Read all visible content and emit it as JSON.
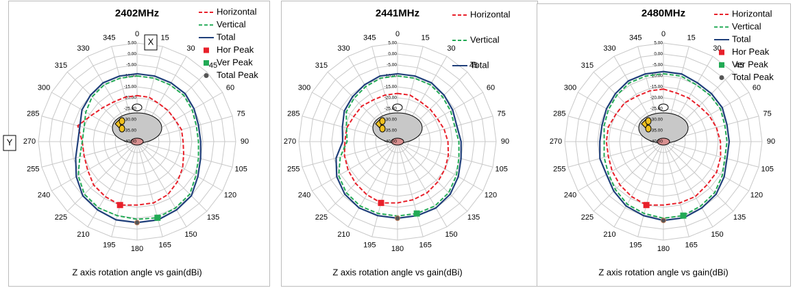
{
  "chart_data": [
    {
      "type": "radar",
      "title": "2402MHz",
      "x_label": "Z axis rotation angle  vs  gain(dBi)",
      "categories": [
        "0",
        "15",
        "30",
        "45",
        "60",
        "75",
        "90",
        "105",
        "120",
        "135",
        "150",
        "165",
        "180",
        "195",
        "210",
        "225",
        "240",
        "255",
        "270",
        "285",
        "300",
        "315",
        "330",
        "345"
      ],
      "rlim": [
        -40,
        5
      ],
      "rticks": [
        {
          "value": 5,
          "label": "5.00"
        },
        {
          "value": 0,
          "label": "0.00"
        },
        {
          "value": -5,
          "label": "-5.00"
        },
        {
          "value": -10,
          "label": "-10.00"
        },
        {
          "value": -15,
          "label": "-15.00"
        },
        {
          "value": -20,
          "label": "-20.00"
        },
        {
          "value": -25,
          "label": "-25.00"
        },
        {
          "value": -30,
          "label": "-30.00"
        },
        {
          "value": -35,
          "label": "-35.00"
        },
        {
          "value": -40,
          "label": "-40.00"
        }
      ],
      "series": [
        {
          "name": "Horizontal",
          "color": "#e8202a",
          "line_style": "dashed",
          "values": [
            -19,
            -19,
            -20,
            -20,
            -20,
            -19,
            -19,
            -18,
            -16,
            -14,
            -12,
            -11,
            -11,
            -10,
            -11,
            -12,
            -14,
            -15,
            -15,
            -12,
            -16,
            -18,
            -19,
            -19
          ]
        },
        {
          "name": "Vertical",
          "color": "#22aa55",
          "line_style": "dashed",
          "values": [
            -10,
            -10,
            -10,
            -10,
            -11,
            -12,
            -12,
            -11,
            -9,
            -6,
            -5,
            -4,
            -4.5,
            -5,
            -5,
            -6,
            -9,
            -13,
            -15,
            -15,
            -13,
            -11,
            -10,
            -10
          ]
        },
        {
          "name": "Total",
          "color": "#1f3f7a",
          "line_style": "solid",
          "values": [
            -9,
            -9,
            -9,
            -9,
            -10,
            -11,
            -11,
            -10,
            -8,
            -5,
            -4,
            -3,
            -3,
            -3,
            -4,
            -5,
            -8,
            -11,
            -13,
            -13,
            -11,
            -10,
            -9,
            -9
          ]
        }
      ],
      "peaks": [
        {
          "name": "Hor Peak",
          "color": "#e8202a",
          "marker": "square",
          "angle": 195,
          "value": -10
        },
        {
          "name": "Ver Peak",
          "color": "#22aa55",
          "marker": "square",
          "angle": 165,
          "value": -4
        },
        {
          "name": "Total Peak",
          "color": "#555555",
          "marker": "circle",
          "angle": 180,
          "value": -3
        }
      ],
      "annotations": [
        "X",
        "Y"
      ]
    },
    {
      "type": "radar",
      "title": "2441MHz",
      "x_label": "Z axis rotation angle  vs  gain(dBi)",
      "categories": [
        "0",
        "15",
        "30",
        "45",
        "60",
        "75",
        "90",
        "105",
        "120",
        "135",
        "150",
        "165",
        "180",
        "195",
        "210",
        "225",
        "240",
        "255",
        "270",
        "285",
        "300",
        "315",
        "330",
        "345"
      ],
      "rlim": [
        -40,
        5
      ],
      "rticks": [
        {
          "value": 5,
          "label": "5.00"
        },
        {
          "value": 0,
          "label": "0.00"
        },
        {
          "value": -5,
          "label": "-5.00"
        },
        {
          "value": -10,
          "label": "-10.00"
        },
        {
          "value": -15,
          "label": "-15.00"
        },
        {
          "value": -20,
          "label": "-20.00"
        },
        {
          "value": -25,
          "label": "-25.00"
        },
        {
          "value": -30,
          "label": "-30.00"
        },
        {
          "value": -35,
          "label": "-35.00"
        },
        {
          "value": -40,
          "label": "-40.00"
        }
      ],
      "series": [
        {
          "name": "Horizontal",
          "color": "#e8202a",
          "line_style": "dashed",
          "values": [
            -18,
            -18,
            -19,
            -19,
            -19,
            -18,
            -17,
            -16,
            -15,
            -14,
            -13,
            -12.5,
            -12,
            -11,
            -12,
            -13,
            -14,
            -15,
            -16,
            -16,
            -17,
            -17,
            -18,
            -18
          ]
        },
        {
          "name": "Vertical",
          "color": "#22aa55",
          "line_style": "dashed",
          "values": [
            -10,
            -10,
            -10,
            -11,
            -12,
            -13,
            -12,
            -11,
            -9,
            -7,
            -6,
            -6,
            -6,
            -6,
            -6,
            -7,
            -9,
            -13,
            -17,
            -16,
            -13,
            -12,
            -11,
            -10
          ]
        },
        {
          "name": "Total",
          "color": "#1f3f7a",
          "line_style": "solid",
          "values": [
            -9,
            -9,
            -9,
            -10,
            -11,
            -12,
            -11,
            -10,
            -8,
            -6,
            -5,
            -5,
            -5,
            -5,
            -5,
            -6,
            -8,
            -11,
            -15,
            -14,
            -12,
            -11,
            -10,
            -9
          ]
        }
      ],
      "peaks": [
        {
          "color": "#e8202a",
          "marker": "square",
          "angle": 195,
          "value": -11
        },
        {
          "color": "#22aa55",
          "marker": "square",
          "angle": 165,
          "value": -6
        },
        {
          "color": "#555555",
          "marker": "circle",
          "angle": 180,
          "value": -5
        }
      ]
    },
    {
      "type": "radar",
      "title": "2480MHz",
      "x_label": "Z axis rotation angle  vs  gain(dBi)",
      "categories": [
        "0",
        "15",
        "30",
        "45",
        "60",
        "75",
        "90",
        "105",
        "120",
        "135",
        "150",
        "165",
        "180",
        "195",
        "210",
        "225",
        "240",
        "255",
        "270",
        "285",
        "300",
        "315",
        "330",
        "345"
      ],
      "rlim": [
        -40,
        5
      ],
      "rticks": [
        {
          "value": 5,
          "label": "5.00"
        },
        {
          "value": 0,
          "label": "0.00"
        },
        {
          "value": -5,
          "label": "-5.00"
        },
        {
          "value": -10,
          "label": "-10.00"
        },
        {
          "value": -15,
          "label": "-15.00"
        },
        {
          "value": -20,
          "label": "-20.00"
        },
        {
          "value": -25,
          "label": "-25.00"
        },
        {
          "value": -30,
          "label": "-30.00"
        },
        {
          "value": -35,
          "label": "-35.00"
        },
        {
          "value": -40,
          "label": "-40.00"
        }
      ],
      "series": [
        {
          "name": "Horizontal",
          "color": "#e8202a",
          "line_style": "dashed",
          "values": [
            -16,
            -17,
            -17,
            -17,
            -16,
            -15,
            -14,
            -13,
            -12,
            -12,
            -11,
            -11,
            -11,
            -10,
            -11,
            -12,
            -13,
            -14,
            -14,
            -14,
            -15,
            -15,
            -16,
            -16
          ]
        },
        {
          "name": "Vertical",
          "color": "#22aa55",
          "line_style": "dashed",
          "values": [
            -9,
            -9,
            -10,
            -10,
            -10,
            -11,
            -11,
            -11,
            -9,
            -7,
            -6,
            -5,
            -5,
            -6,
            -7,
            -9,
            -11,
            -12,
            -13,
            -12,
            -11,
            -10,
            -9,
            -9
          ]
        },
        {
          "name": "Total",
          "color": "#1f3f7a",
          "line_style": "solid",
          "values": [
            -8,
            -8,
            -9,
            -9,
            -9,
            -10,
            -10,
            -10,
            -8,
            -6,
            -5,
            -4,
            -4,
            -5,
            -6,
            -8,
            -10,
            -10,
            -11,
            -11,
            -10,
            -9,
            -8,
            -8
          ]
        }
      ],
      "peaks": [
        {
          "name": "Hor Peak",
          "color": "#e8202a",
          "marker": "square",
          "angle": 195,
          "value": -10
        },
        {
          "name": "Ver Peak",
          "color": "#22aa55",
          "marker": "square",
          "angle": 165,
          "value": -5
        },
        {
          "name": "Total Peak",
          "color": "#555555",
          "marker": "circle",
          "angle": 180,
          "value": -4
        }
      ]
    }
  ]
}
